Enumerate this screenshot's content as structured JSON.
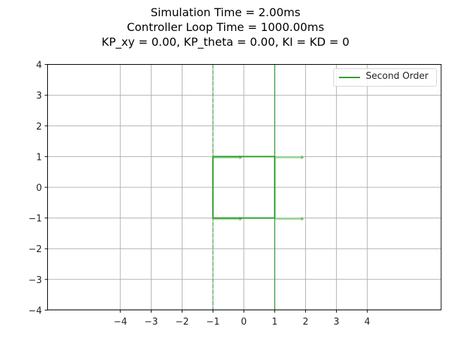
{
  "title": {
    "line1": "Simulation Time = 2.00ms",
    "line2": "Controller Loop Time = 1000.00ms",
    "line3": "KP_xy = 0.00, KP_theta = 0.00, KI = KD = 0"
  },
  "legend": {
    "label": "Second Order",
    "color": "#2ca02c"
  },
  "axes": {
    "x_ticks": [
      "−4",
      "−3",
      "−2",
      "−1",
      "0",
      "1",
      "2",
      "3",
      "4"
    ],
    "y_ticks": [
      "4",
      "3",
      "2",
      "1",
      "0",
      "−1",
      "−2",
      "−3",
      "−4"
    ]
  },
  "chart_data": {
    "type": "line",
    "title": "Simulation Time = 2.00ms / Controller Loop Time = 1000.00ms / KP_xy = 0.00, KP_theta = 0.00, KI = KD = 0",
    "xlabel": "",
    "ylabel": "",
    "xlim": [
      -6.3,
      6.4
    ],
    "ylim": [
      -4,
      4
    ],
    "x_ticks": [
      -4,
      -3,
      -2,
      -1,
      0,
      1,
      2,
      3,
      4
    ],
    "y_ticks": [
      -4,
      -3,
      -2,
      -1,
      0,
      1,
      2,
      3,
      4
    ],
    "grid": true,
    "legend_position": "upper right",
    "series": [
      {
        "name": "Second Order",
        "color": "#2ca02c",
        "style": "solid",
        "x": [
          -1,
          1,
          1,
          -1,
          -1
        ],
        "y": [
          1,
          1,
          -1,
          -1,
          1
        ]
      }
    ],
    "reference_lines": [
      {
        "orientation": "vertical",
        "x": -1,
        "style": "dashed",
        "color": "#2ca02c"
      },
      {
        "orientation": "vertical",
        "x": 1,
        "style": "solid",
        "color": "#2ca02c"
      }
    ],
    "arrows": [
      {
        "x": -1,
        "y": 1,
        "dx": 0.95,
        "dy": 0
      },
      {
        "x": 1,
        "y": 1,
        "dx": 0.95,
        "dy": 0
      },
      {
        "x": -1,
        "y": -1,
        "dx": 0.95,
        "dy": 0
      },
      {
        "x": 1,
        "y": -1,
        "dx": 0.95,
        "dy": 0
      }
    ]
  }
}
